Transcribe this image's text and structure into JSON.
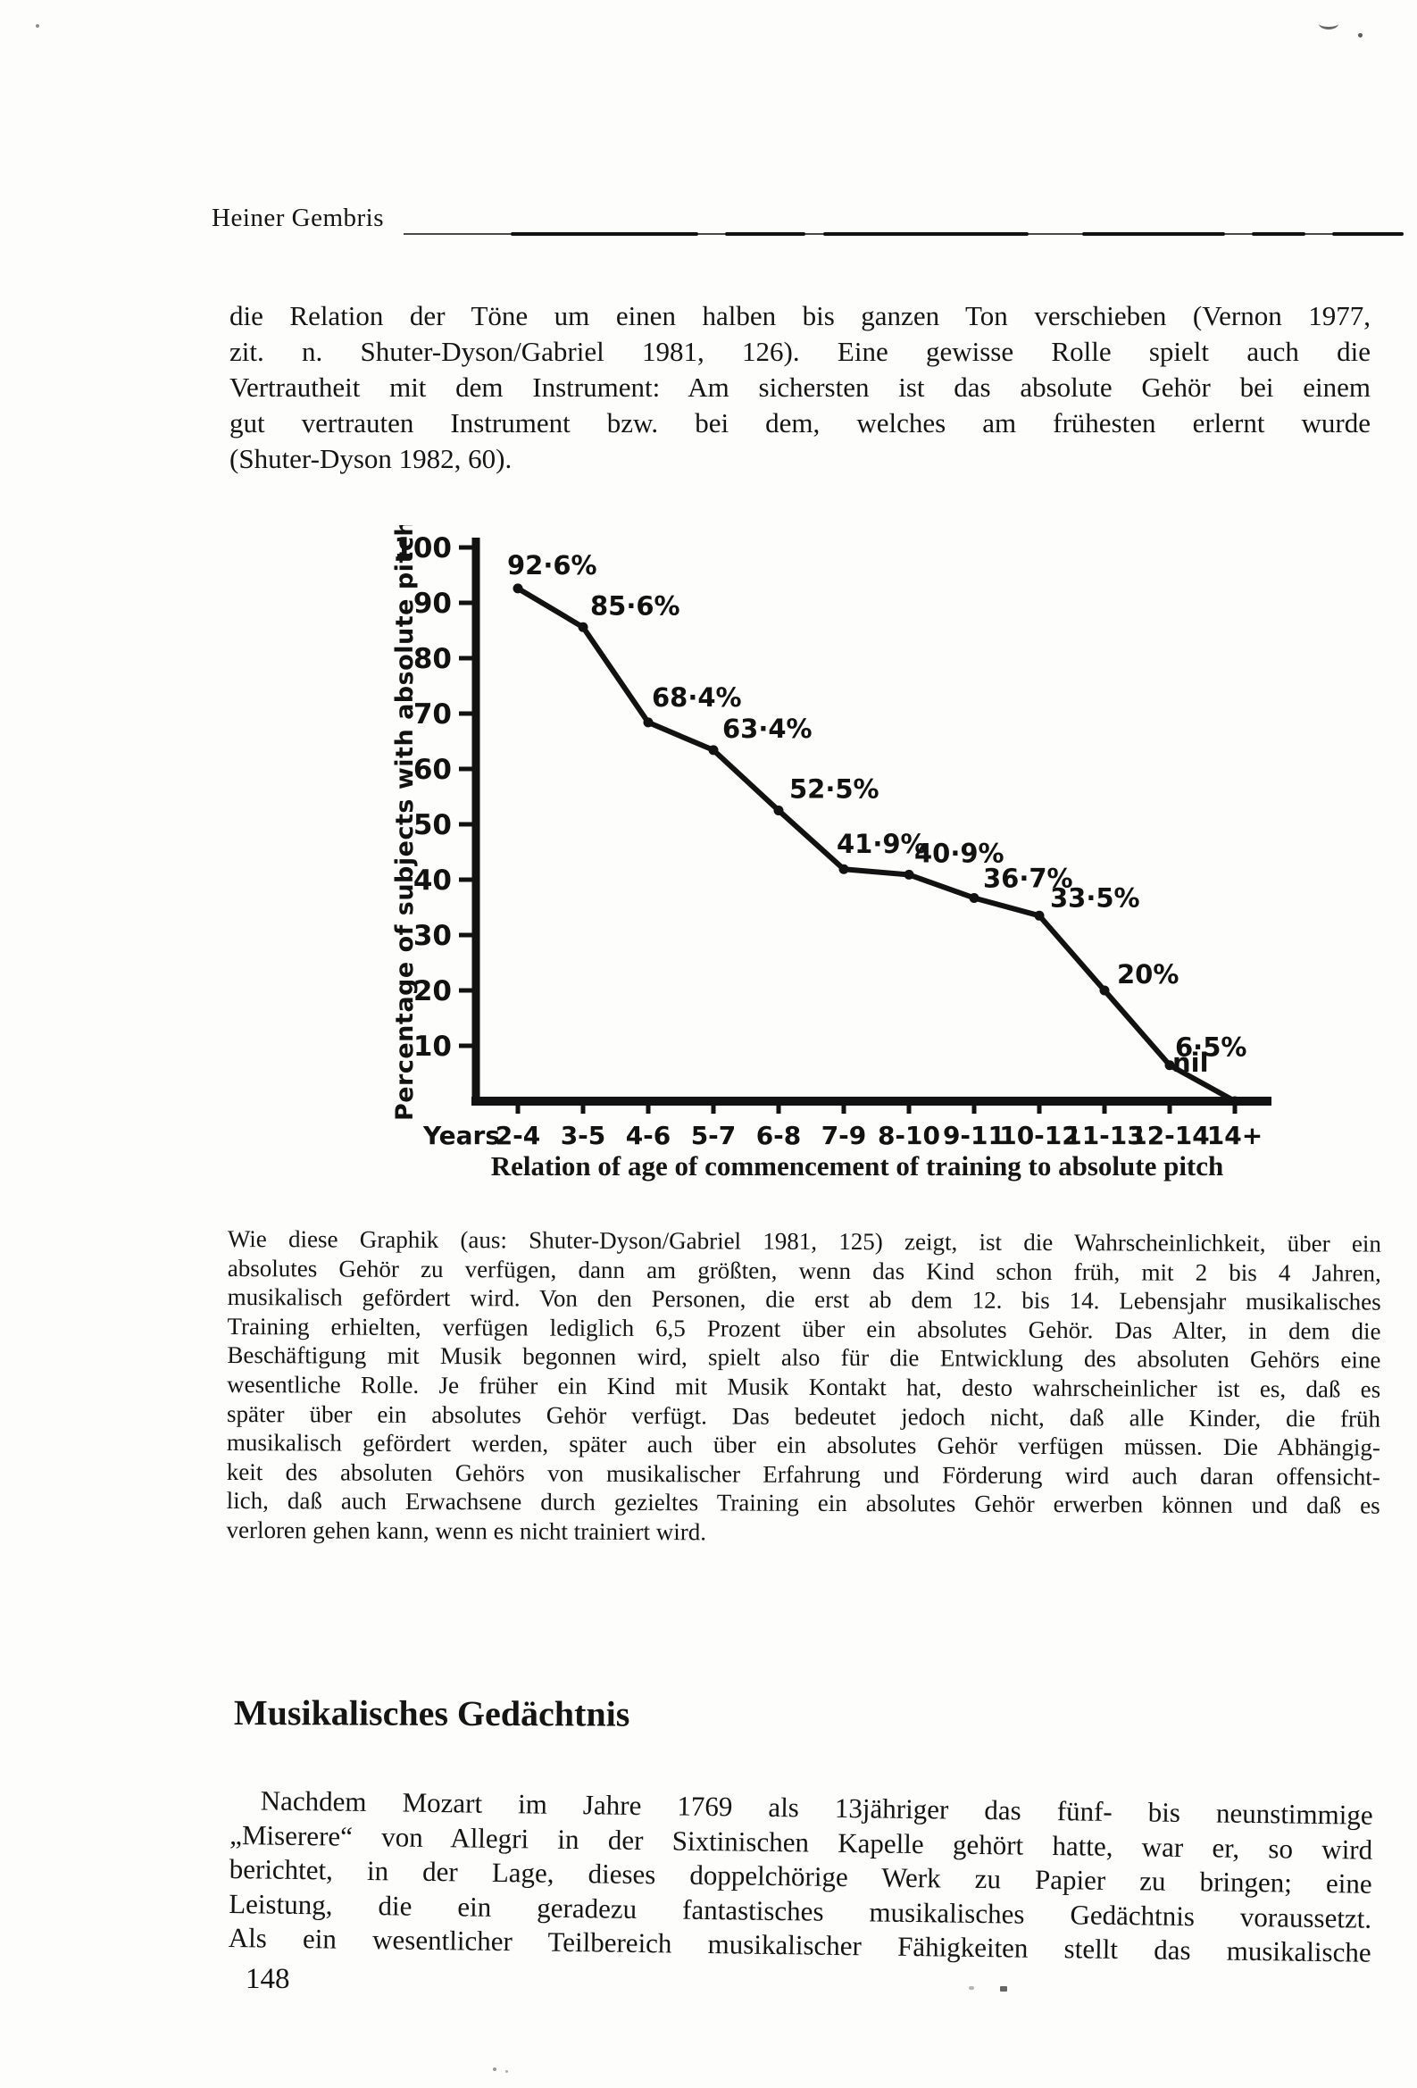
{
  "page": {
    "header": {
      "author": "Heiner Gembris"
    },
    "paragraph_1": {
      "lines": [
        "die Relation der Töne um einen halben bis ganzen Ton verschieben (Vernon 1977,",
        "zit. n. Shuter-Dyson/Gabriel 1981, 126). Eine gewisse Rolle spielt auch die",
        "Vertrautheit mit dem Instrument: Am sichersten ist das absolute Gehör bei einem",
        "gut vertrauten Instrument bzw. bei dem, welches am frühesten erlernt wurde",
        "(Shuter-Dyson 1982, 60)."
      ]
    },
    "figure": {
      "caption": "Relation of age of commencement of training to absolute pitch"
    },
    "paragraph_2": {
      "lines": [
        "Wie diese Graphik (aus: Shuter-Dyson/Gabriel 1981, 125) zeigt, ist die Wahrscheinlichkeit, über ein",
        "absolutes Gehör zu verfügen, dann am größten, wenn das Kind schon früh, mit 2 bis 4 Jahren,",
        "musikalisch gefördert wird. Von den Personen, die erst ab dem 12. bis 14. Lebensjahr musikalisches",
        "Training erhielten, verfügen lediglich 6,5 Prozent über ein absolutes Gehör. Das Alter, in dem die",
        "Beschäftigung mit Musik begonnen wird, spielt also für die Entwicklung des absoluten Gehörs eine",
        "wesentliche Rolle. Je früher ein Kind mit Musik Kontakt hat, desto wahrscheinlicher ist es, daß es",
        "später über ein absolutes Gehör verfügt. Das bedeutet jedoch nicht, daß alle Kinder, die früh",
        "musikalisch gefördert werden, später auch über ein absolutes Gehör verfügen müssen. Die Abhängig-",
        "keit des absoluten Gehörs von musikalischer Erfahrung und Förderung wird auch daran offensicht-",
        "lich, daß auch Erwachsene durch gezieltes Training ein absolutes Gehör erwerben können und daß es",
        "verloren gehen kann, wenn es nicht trainiert wird."
      ]
    },
    "section_heading": "Musikalisches Gedächtnis",
    "paragraph_3": {
      "lines": [
        "Nachdem Mozart im Jahre 1769 als 13jähriger das fünf- bis neunstimmige",
        "„Miserere“ von Allegri in der Sixtinischen Kapelle gehört hatte, war er, so wird",
        "berichtet, in der Lage, dieses doppelchörige Werk zu Papier zu bringen; eine",
        "Leistung, die ein geradezu fantastisches musikalisches Gedächtnis voraussetzt.",
        "Als ein wesentlicher Teilbereich musikalischer Fähigkeiten stellt das musikalische"
      ]
    },
    "page_number": "148"
  },
  "chart_data": {
    "type": "line",
    "title": "",
    "caption": "Relation of age of commencement of training to absolute pitch",
    "xlabel": "Years",
    "ylabel": "Percentage of subjects with absolute pitch",
    "categories": [
      "2-4",
      "3-5",
      "4-6",
      "5-7",
      "6-8",
      "7-9",
      "8-10",
      "9-11",
      "10-12",
      "11-13",
      "12-14",
      "14+"
    ],
    "values": [
      92.6,
      85.6,
      68.4,
      63.4,
      52.5,
      41.9,
      40.9,
      36.7,
      33.5,
      20,
      6.5,
      0
    ],
    "point_labels": [
      "92·6%",
      "85·6%",
      "68·4%",
      "63·4%",
      "52·5%",
      "41·9%",
      "40·9%",
      "36·7%",
      "33·5%",
      "20%",
      "6·5%",
      "nil"
    ],
    "yticks": [
      10,
      20,
      30,
      40,
      50,
      60,
      70,
      80,
      90,
      100
    ],
    "ylim": [
      0,
      100
    ],
    "grid": false,
    "legend": null,
    "line_color": "#121212"
  }
}
